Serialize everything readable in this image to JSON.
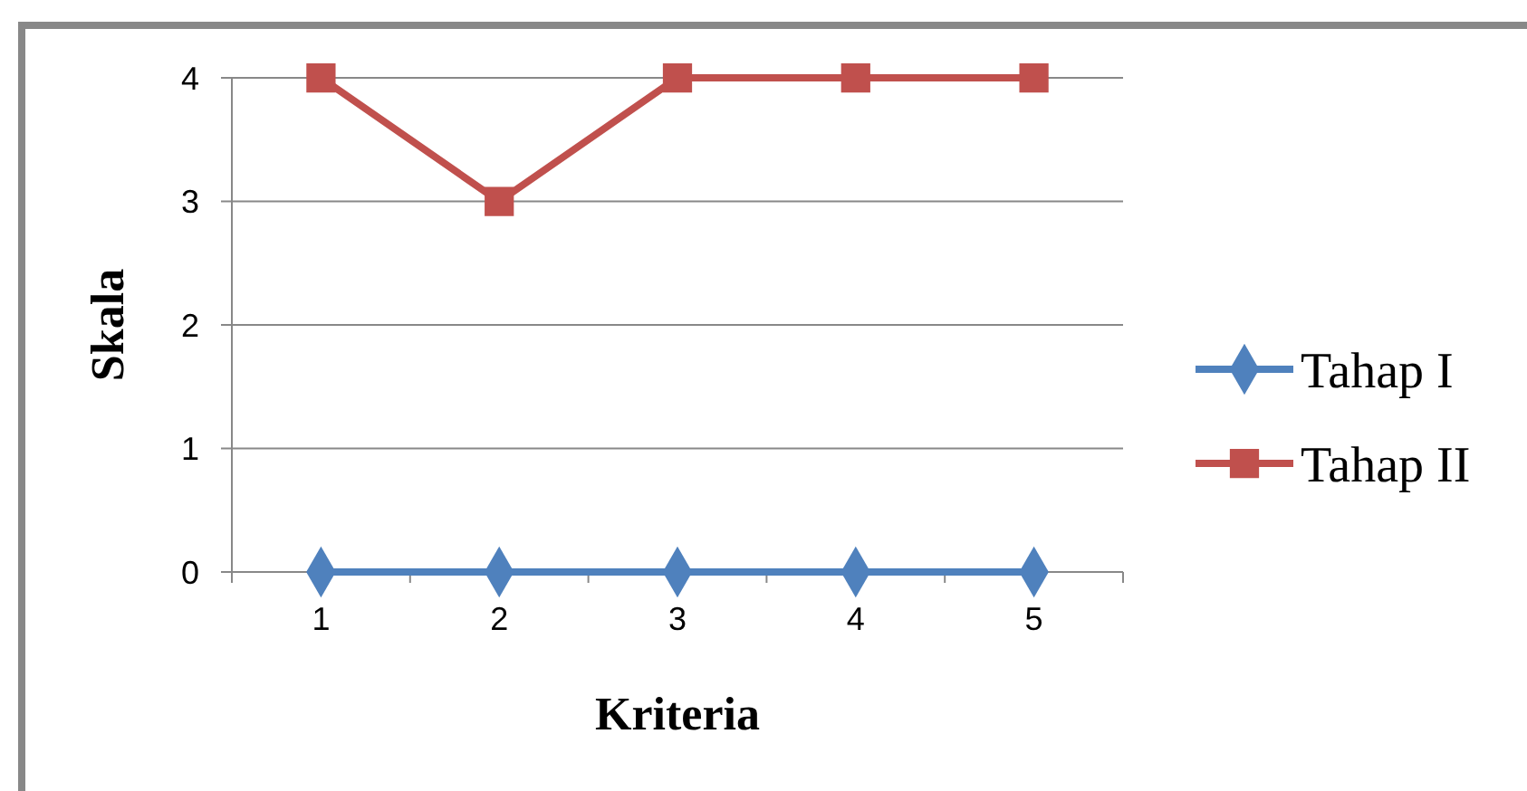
{
  "chart_data": {
    "type": "line",
    "categories": [
      "1",
      "2",
      "3",
      "4",
      "5"
    ],
    "xlabel": "Kriteria",
    "ylabel": "Skala",
    "ylim": [
      0,
      4
    ],
    "yticks": [
      0,
      1,
      2,
      3,
      4
    ],
    "grid": "y",
    "legend": "right",
    "series": [
      {
        "name": "Tahap I",
        "color": "#4f81bd",
        "values": [
          0,
          0,
          0,
          0,
          0
        ],
        "marker": "diamond"
      },
      {
        "name": "Tahap II",
        "color": "#c0504d",
        "values": [
          4,
          3,
          4,
          4,
          4
        ],
        "marker": "square"
      }
    ]
  }
}
